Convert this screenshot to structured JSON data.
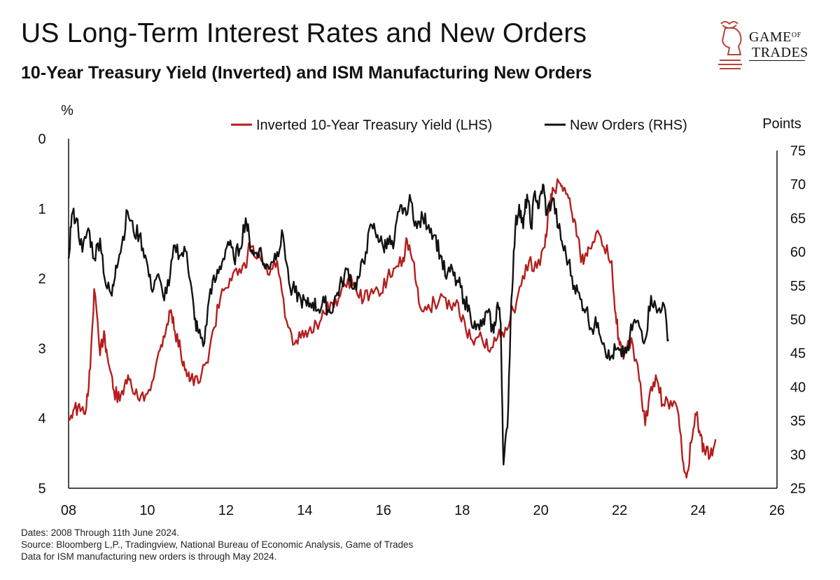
{
  "title": "US Long-Term Interest Rates and New Orders",
  "subtitle": "10-Year Treasury Yield (Inverted) and ISM Manufacturing New Orders",
  "logo": {
    "line1": "GAME",
    "of": "OF",
    "line2": "TRADES"
  },
  "footnotes": [
    "Dates: 2008 Through 11th June 2024.",
    "Source: Bloomberg L,P., Tradingview, National Bureau of Economic Analysis, Game of Trades",
    "Data for ISM manufacturing new orders is through May 2024."
  ],
  "colors": {
    "yield": "#b41e1e",
    "orders": "#111111",
    "logo": "#b5453a"
  },
  "chart_data": {
    "type": "line",
    "title": "US Long-Term Interest Rates and New Orders",
    "left_axis": {
      "label": "%",
      "ticks": [
        "0",
        "1",
        "2",
        "3",
        "4",
        "5"
      ],
      "range": [
        0,
        5
      ],
      "inverted": true
    },
    "right_axis": {
      "label": "Points",
      "ticks": [
        "75",
        "70",
        "65",
        "60",
        "55",
        "50",
        "45",
        "40",
        "35",
        "30",
        "25"
      ],
      "range": [
        25,
        75
      ]
    },
    "x_axis": {
      "ticks": [
        "08",
        "10",
        "12",
        "14",
        "16",
        "18",
        "20",
        "22",
        "24",
        "26"
      ],
      "range": [
        2008,
        2026
      ]
    },
    "legend": {
      "position": "top-right",
      "entries": [
        "Inverted 10-Year Treasury Yield (LHS)",
        "New Orders (RHS)"
      ]
    },
    "series": [
      {
        "name": "Inverted 10-Year Treasury Yield (LHS)",
        "axis": "left",
        "x": [
          2008.0,
          2008.15,
          2008.3,
          2008.45,
          2008.55,
          2008.65,
          2008.8,
          2008.9,
          2008.98,
          2009.05,
          2009.15,
          2009.3,
          2009.45,
          2009.6,
          2009.8,
          2010.0,
          2010.2,
          2010.35,
          2010.5,
          2010.6,
          2010.7,
          2010.85,
          2010.98,
          2011.1,
          2011.3,
          2011.5,
          2011.7,
          2011.9,
          2012.1,
          2012.3,
          2012.5,
          2012.6,
          2012.75,
          2012.9,
          2013.1,
          2013.3,
          2013.5,
          2013.7,
          2013.9,
          2014.1,
          2014.3,
          2014.5,
          2014.7,
          2014.9,
          2015.1,
          2015.3,
          2015.5,
          2015.7,
          2015.9,
          2016.1,
          2016.3,
          2016.5,
          2016.6,
          2016.75,
          2016.9,
          2017.1,
          2017.3,
          2017.5,
          2017.7,
          2017.9,
          2018.1,
          2018.3,
          2018.5,
          2018.7,
          2018.9,
          2019.1,
          2019.3,
          2019.5,
          2019.7,
          2019.9,
          2020.1,
          2020.2,
          2020.3,
          2020.5,
          2020.6,
          2020.7,
          2020.85,
          2021.0,
          2021.1,
          2021.2,
          2021.4,
          2021.6,
          2021.8,
          2021.9,
          2022.0,
          2022.1,
          2022.3,
          2022.5,
          2022.65,
          2022.8,
          2022.95,
          2023.1,
          2023.3,
          2023.5,
          2023.6,
          2023.7,
          2023.82,
          2023.95,
          2024.05,
          2024.15,
          2024.3,
          2024.44
        ],
        "y": [
          4.0,
          3.85,
          3.9,
          3.85,
          3.3,
          2.15,
          3.1,
          2.75,
          3.1,
          3.3,
          3.6,
          3.75,
          3.45,
          3.55,
          3.75,
          3.65,
          3.3,
          2.95,
          2.65,
          2.45,
          2.75,
          3.05,
          3.3,
          3.45,
          3.5,
          3.2,
          2.7,
          2.15,
          2.0,
          1.95,
          1.85,
          1.5,
          1.7,
          1.75,
          1.95,
          1.75,
          2.55,
          2.95,
          2.85,
          2.75,
          2.65,
          2.5,
          2.35,
          2.25,
          2.0,
          2.15,
          2.3,
          2.15,
          2.25,
          2.0,
          1.85,
          1.7,
          1.45,
          1.75,
          2.35,
          2.45,
          2.35,
          2.25,
          2.4,
          2.35,
          2.75,
          2.95,
          2.85,
          3.05,
          2.85,
          2.7,
          2.45,
          2.1,
          1.75,
          1.85,
          1.55,
          1.05,
          0.7,
          0.65,
          0.7,
          0.85,
          1.15,
          1.65,
          1.75,
          1.55,
          1.35,
          1.55,
          1.75,
          2.5,
          2.95,
          3.15,
          2.85,
          3.45,
          4.1,
          3.55,
          3.45,
          3.8,
          3.75,
          3.95,
          4.6,
          4.85,
          4.35,
          3.95,
          4.25,
          4.45,
          4.55,
          4.3
        ]
      },
      {
        "name": "New Orders (RHS)",
        "axis": "right",
        "x": [
          2008.0,
          2008.08,
          2008.2,
          2008.35,
          2008.5,
          2008.65,
          2008.8,
          2008.95,
          2009.1,
          2009.2,
          2009.35,
          2009.5,
          2009.65,
          2009.8,
          2009.95,
          2010.1,
          2010.25,
          2010.4,
          2010.55,
          2010.7,
          2010.85,
          2011.0,
          2011.1,
          2011.2,
          2011.3,
          2011.45,
          2011.6,
          2011.75,
          2011.9,
          2012.05,
          2012.2,
          2012.35,
          2012.5,
          2012.6,
          2012.7,
          2012.85,
          2013.0,
          2013.15,
          2013.3,
          2013.45,
          2013.6,
          2013.75,
          2013.9,
          2014.05,
          2014.2,
          2014.35,
          2014.5,
          2014.65,
          2014.8,
          2014.95,
          2015.1,
          2015.25,
          2015.4,
          2015.55,
          2015.7,
          2015.85,
          2016.0,
          2016.1,
          2016.25,
          2016.4,
          2016.55,
          2016.7,
          2016.85,
          2017.0,
          2017.15,
          2017.3,
          2017.45,
          2017.6,
          2017.75,
          2017.9,
          2018.05,
          2018.2,
          2018.35,
          2018.5,
          2018.65,
          2018.8,
          2018.9,
          2018.98,
          2019.05,
          2019.15,
          2019.25,
          2019.35,
          2019.45,
          2019.55,
          2019.65,
          2019.75,
          2019.85,
          2019.95,
          2020.05,
          2020.15,
          2020.3,
          2020.45,
          2020.55,
          2020.7,
          2020.85,
          2021.0,
          2021.15,
          2021.3,
          2021.45,
          2021.6,
          2021.75,
          2021.9,
          2022.05,
          2022.2,
          2022.35,
          2022.5,
          2022.65,
          2022.8,
          2022.95,
          2023.1,
          2023.25
        ],
        "y": [
          59.0,
          65.5,
          65.0,
          60.0,
          63.5,
          59.0,
          62.0,
          55.0,
          53.5,
          58.0,
          61.0,
          66.0,
          63.0,
          62.5,
          59.5,
          54.5,
          56.5,
          53.5,
          55.0,
          61.0,
          59.5,
          60.0,
          55.5,
          50.0,
          48.0,
          46.5,
          54.5,
          56.0,
          58.5,
          61.5,
          59.0,
          60.5,
          65.0,
          61.5,
          59.5,
          60.5,
          57.5,
          58.5,
          60.0,
          62.5,
          55.5,
          54.0,
          53.0,
          52.0,
          52.5,
          51.5,
          52.5,
          51.0,
          53.5,
          55.5,
          57.5,
          54.5,
          56.5,
          60.0,
          64.0,
          62.5,
          60.5,
          62.0,
          60.5,
          66.0,
          66.5,
          67.5,
          63.5,
          65.0,
          64.0,
          62.5,
          59.5,
          56.0,
          57.5,
          55.5,
          53.0,
          51.0,
          48.5,
          49.0,
          51.0,
          48.0,
          52.5,
          49.5,
          28.5,
          34.0,
          53.0,
          63.5,
          67.0,
          63.5,
          68.5,
          63.5,
          69.0,
          66.5,
          70.0,
          65.5,
          68.0,
          63.5,
          61.0,
          58.5,
          55.0,
          53.0,
          51.5,
          48.5,
          49.5,
          46.5,
          44.0,
          45.5,
          44.5,
          46.0,
          49.5,
          49.0,
          47.0,
          53.5,
          51.0,
          52.5,
          47.0
        ]
      }
    ]
  }
}
